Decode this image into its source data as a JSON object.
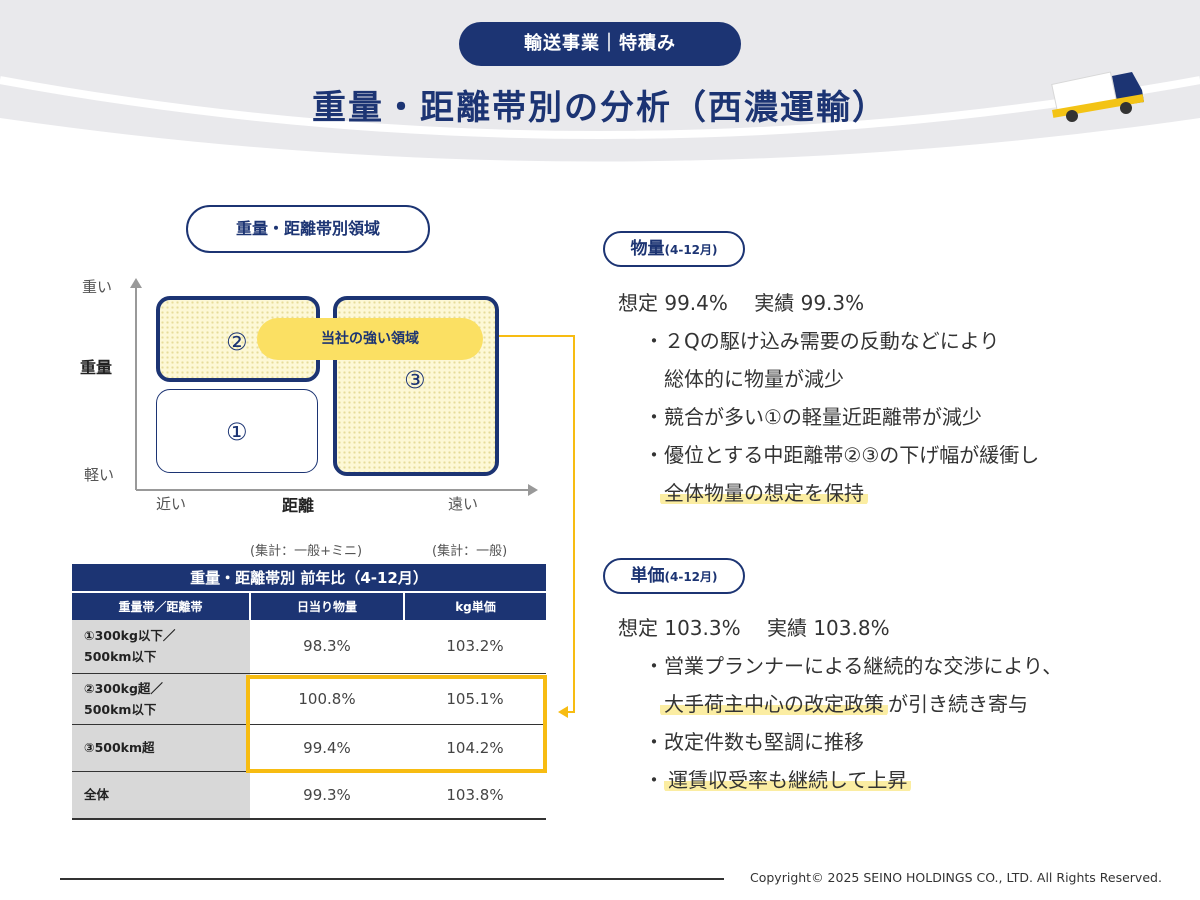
{
  "header": {
    "segment": "輸送事業｜特積み",
    "title": "重量・距離帯別の分析（西濃運輸）"
  },
  "matrix": {
    "heading": "重量・距離帯別領域",
    "y_top": "重い",
    "y_axis": "重量",
    "y_bottom": "軽い",
    "x_left": "近い",
    "x_axis": "距離",
    "x_right": "遠い",
    "box1": "①",
    "box2": "②",
    "box3": "③",
    "strong_area": "当社の強い領域"
  },
  "table": {
    "tally_left": "(集計：一般+ミニ)",
    "tally_right": "(集計：一般)",
    "caption": "重量・距離帯別 前年比（4-12月）",
    "headers": [
      "重量帯／距離帯",
      "日当り物量",
      "kg単価"
    ],
    "rows": [
      {
        "label_1": "①300kg以下／",
        "label_2": "500km以下",
        "volume": "98.3%",
        "price": "103.2%"
      },
      {
        "label_1": "②300kg超／",
        "label_2": "500km以下",
        "volume": "100.8%",
        "price": "105.1%"
      },
      {
        "label_1": "③500km超",
        "label_2": "",
        "volume": "99.4%",
        "price": "104.2%"
      },
      {
        "label_1": "全体",
        "label_2": "",
        "volume": "99.3%",
        "price": "103.8%"
      }
    ]
  },
  "volume": {
    "title": "物量",
    "period": "(4-12月)",
    "plan_actual": "想定 99.4%　 実績 99.3%",
    "bullet1_line1": "・２Qの駆け込み需要の反動などにより",
    "bullet1_line2": "総体的に物量が減少",
    "bullet2": "・競合が多い①の軽量近距離帯が減少",
    "bullet3_line1": "・優位とする中距離帯②③の下げ幅が緩衝し",
    "bullet3_line2": "全体物量の想定を保持"
  },
  "unit_price": {
    "title": "単価",
    "period": "(4-12月)",
    "plan_actual": "想定 103.3%　 実績 103.8%",
    "bullet1_line1": "・営業プランナーによる継続的な交渉により、",
    "bullet1_line2_marked": "大手荷主中心の改定政策",
    "bullet1_line2_rest": "が引き続き寄与",
    "bullet2": "・改定件数も堅調に推移",
    "bullet3_dot": "・",
    "bullet3_marked": "運賃収受率も継続して上昇"
  },
  "footer": {
    "copyright": "Copyright© 2025  SEINO HOLDINGS CO., LTD.  All  Rights Reserved."
  },
  "colors": {
    "navy": "#1c3473",
    "yellow": "#fbe063",
    "highlight_frame": "#f7bc12",
    "marker": "#fbeda2",
    "header_gray": "#e9e9ec"
  }
}
